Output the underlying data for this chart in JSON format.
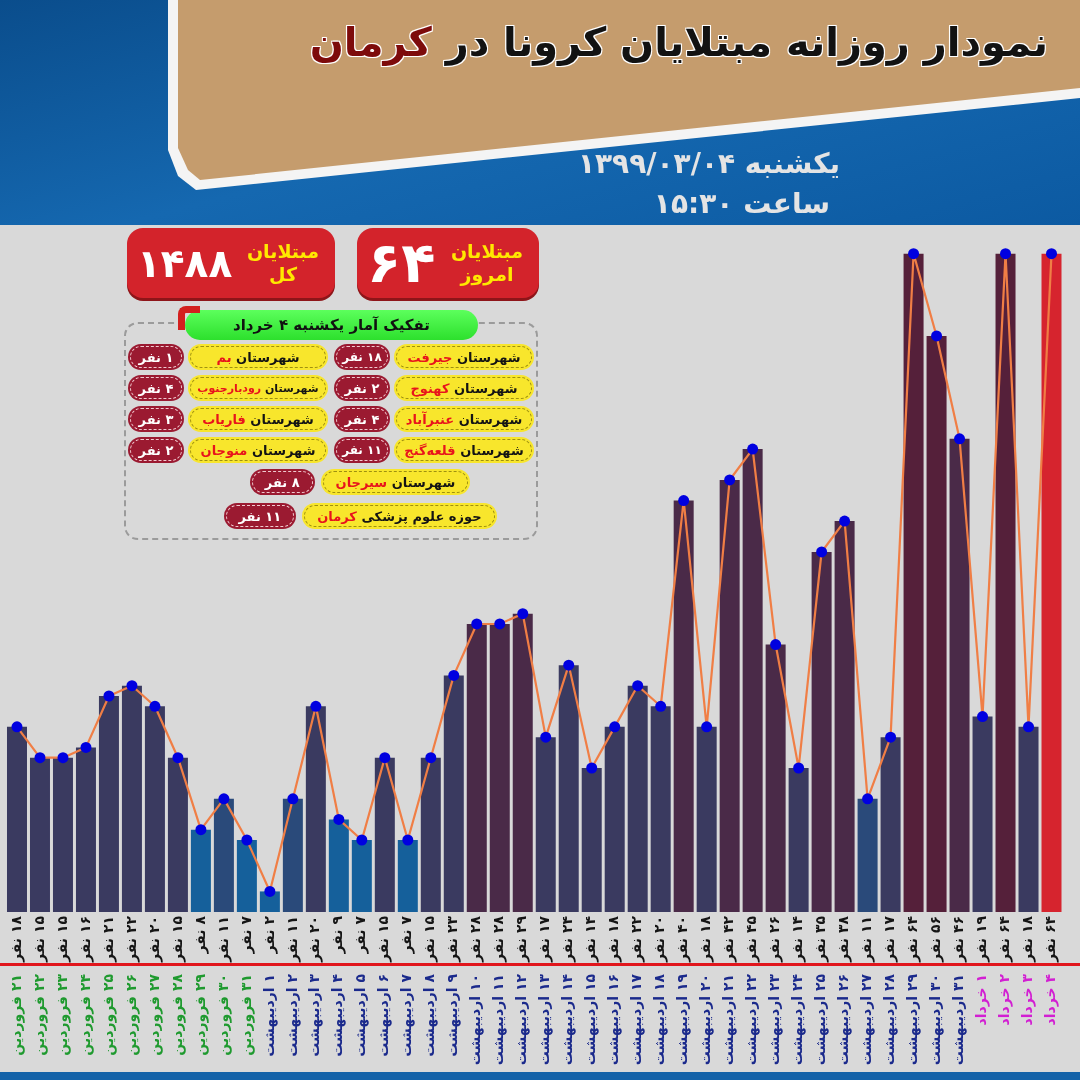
{
  "chart_data": [
    {
      "type": "bar",
      "title": "نمودار روزانه مبتلایان کرونا در کرمان",
      "subtitle": "یکشنبه ۱۳۹۹/۰۳/۰۴",
      "annotations": [
        "ساعت ۱۵:۳۰"
      ],
      "categories": [
        "۲۱ فروردین",
        "۲۲ فروردین",
        "۲۳ فروردین",
        "۲۴ فروردین",
        "۲۵ فروردین",
        "۲۶ فروردین",
        "۲۷ فروردین",
        "۲۸ فروردین",
        "۲۹ فروردین",
        "۳۰ فروردین",
        "۳۱ فروردین",
        "۱ اردیبهشت",
        "۲ اردیبهشت",
        "۳ اردیبهشت",
        "۴ اردیبهشت",
        "۵ اردیبهشت",
        "۶ اردیبهشت",
        "۷ اردیبهشت",
        "۸ اردیبهشت",
        "۹ اردیبهشت",
        "۱۰ اردیبهشت",
        "۱۱ اردیبهشت",
        "۱۲ اردیبهشت",
        "۱۳ اردیبهشت",
        "۱۴ اردیبهشت",
        "۱۵ اردیبهشت",
        "۱۶ اردیبهشت",
        "۱۷ اردیبهشت",
        "۱۸ اردیبهشت",
        "۱۹ اردیبهشت",
        "۲۰ اردیبهشت",
        "۲۱ اردیبهشت",
        "۲۲ اردیبهشت",
        "۲۳ اردیبهشت",
        "۲۴ اردیبهشت",
        "۲۵ اردیبهشت",
        "۲۶ اردیبهشت",
        "۲۷ اردیبهشت",
        "۲۸ اردیبهشت",
        "۲۹ اردیبهشت",
        "۳۰ اردیبهشت",
        "۳۱ اردیبهشت",
        "۱ خرداد",
        "۲ خرداد",
        "۳ خرداد",
        "۴ خرداد"
      ],
      "series": [
        {
          "colors": [
            "#3a3a60",
            "#3a3a60",
            "#3a3a60",
            "#3a3a60",
            "#3a3a60",
            "#3a3a60",
            "#3a3a60",
            "#3a3a60",
            "#15609b",
            "#2a4a7a",
            "#15609b",
            "#15609b",
            "#2a4a7a",
            "#3a3a60",
            "#15609b",
            "#15609b",
            "#3a3a60",
            "#15609b",
            "#3a3a60",
            "#3a3a60",
            "#4a2a48",
            "#4a2a48",
            "#4a2a48",
            "#3a3a60",
            "#3a3a60",
            "#3a3a60",
            "#3a3a60",
            "#3a3a60",
            "#3a3a60",
            "#4a2a48",
            "#3a3a60",
            "#4a2a48",
            "#4a2a48",
            "#4a2a48",
            "#3a3a60",
            "#4a2a48",
            "#4a2a48",
            "#2a4a7a",
            "#3a3a60",
            "#55203a",
            "#55203a",
            "#4a2a48",
            "#3a3a60",
            "#55203a",
            "#3a3a60",
            "#d6242e"
          ],
          "values": [
            18,
            15,
            15,
            16,
            21,
            22,
            20,
            15,
            8,
            11,
            7,
            2,
            11,
            20,
            9,
            7,
            15,
            7,
            15,
            23,
            28,
            28,
            29,
            17,
            24,
            14,
            18,
            22,
            20,
            40,
            18,
            42,
            45,
            26,
            14,
            35,
            38,
            11,
            17,
            64,
            56,
            46,
            19,
            64,
            18,
            64
          ],
          "value_labels": [
            "۱۸ نفر",
            "۱۵ نفر",
            "۱۵ نفر",
            "۱۶ نفر",
            "۲۱ نفر",
            "۲۲ نفر",
            "۲۰ نفر",
            "۱۵ نفر",
            "۸ نفر",
            "۱۱ نفر",
            "۷ نفر",
            "۲ نفر",
            "۱۱ نفر",
            "۲۰ نفر",
            "۹ نفر",
            "۷ نفر",
            "۱۵ نفر",
            "۷ نفر",
            "۱۵ نفر",
            "۲۳ نفر",
            "۲۸ نفر",
            "۲۸ نفر",
            "۲۹ نفر",
            "۱۷ نفر",
            "۲۴ نفر",
            "۱۴ نفر",
            "۱۸ نفر",
            "۲۲ نفر",
            "۲۰ نفر",
            "۴۰ نفر",
            "۱۸ نفر",
            "۴۲ نفر",
            "۴۵ نفر",
            "۲۶ نفر",
            "۱۴ نفر",
            "۳۵ نفر",
            "۳۸ نفر",
            "۱۱ نفر",
            "۱۷ نفر",
            "۶۴ نفر",
            "۵۶ نفر",
            "۴۶ نفر",
            "۱۹ نفر",
            "۶۴ نفر",
            "۱۸ نفر",
            "۶۴ نفر"
          ]
        },
        {
          "type": "line",
          "marker": "circle",
          "color": "#f07e45",
          "colors": [
            "#0000e0",
            "#0000e0",
            "#0000e0",
            "#0000e0",
            "#0000e0",
            "#0000e0",
            "#0000e0",
            "#0000e0",
            "#0000e0",
            "#0000e0",
            "#0000e0",
            "#0000e0",
            "#0000e0",
            "#0000e0",
            "#0000e0",
            "#0000e0",
            "#0000e0",
            "#0000e0",
            "#0000e0",
            "#0000e0",
            "#0000e0",
            "#0000e0",
            "#0000e0",
            "#0000e0",
            "#0000e0",
            "#0000e0",
            "#0000e0",
            "#0000e0",
            "#0000e0",
            "#0000e0",
            "#0000e0",
            "#0000e0",
            "#0000e0",
            "#0000e0",
            "#0000e0",
            "#0000e0",
            "#0000e0",
            "#0000e0",
            "#0000e0",
            "#0000e0",
            "#0000e0",
            "#0000e0",
            "#0000e0",
            "#0000e0",
            "#0000e0",
            "#0000e0"
          ],
          "values": [
            18,
            15,
            15,
            16,
            21,
            22,
            20,
            15,
            8,
            11,
            7,
            2,
            11,
            20,
            9,
            7,
            15,
            7,
            15,
            23,
            28,
            28,
            29,
            17,
            24,
            14,
            18,
            22,
            20,
            40,
            18,
            42,
            45,
            26,
            14,
            35,
            38,
            11,
            17,
            64,
            56,
            46,
            19,
            64,
            18,
            64
          ]
        }
      ],
      "tick_labels": "x"
    },
    {
      "type": "other",
      "title": "تفکیک آمار یکشنبه ۴ خرداد",
      "annotations": [
        "مبتلایان امروز",
        "۶۴",
        "مبتلایان کل",
        "۱۴۸۸",
        "شهرستان جیرفت",
        "۱۸ نفر",
        "شهرستان بم",
        "۱ نفر",
        "شهرستان کهنوج",
        "۲ نفر",
        "شهرستان رودبارجنوب",
        "۴ نفر",
        "شهرستان عنبرآباد",
        "۴ نفر",
        "شهرستان فاریاب",
        "۳ نفر",
        "شهرستان قلعه‌گنج",
        "۱۱ نفر",
        "شهرستان منوجان",
        "۲ نفر",
        "شهرستان سیرجان",
        "۸ نفر",
        "حوزه علوم پزشکی کرمان",
        "۱۱ نفر"
      ]
    }
  ]
}
